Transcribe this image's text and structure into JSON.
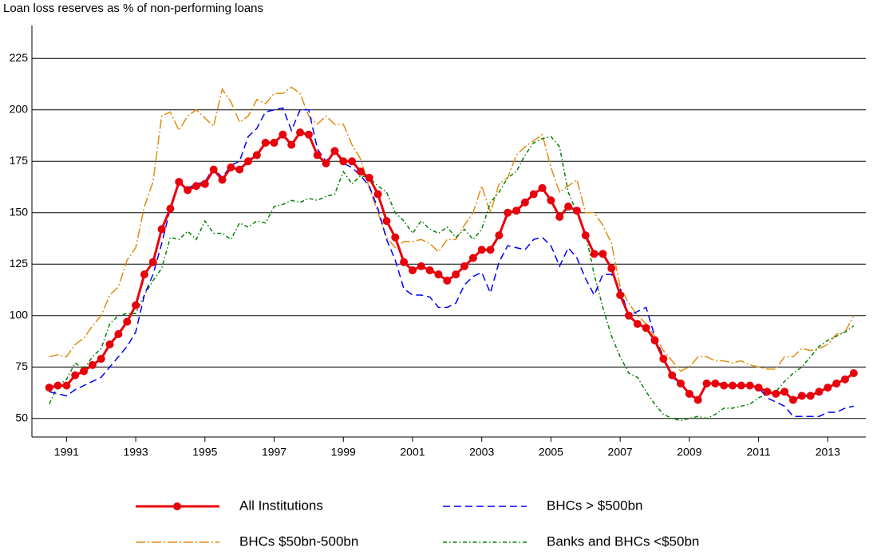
{
  "chart_data": {
    "type": "line",
    "title": "Loan loss reserves as % of non-performing loans",
    "x": [
      1990.5,
      1990.75,
      1991,
      1991.25,
      1991.5,
      1991.75,
      1992,
      1992.25,
      1992.5,
      1992.75,
      1993,
      1993.25,
      1993.5,
      1993.75,
      1994,
      1994.25,
      1994.5,
      1994.75,
      1995,
      1995.25,
      1995.5,
      1995.75,
      1996,
      1996.25,
      1996.5,
      1996.75,
      1997,
      1997.25,
      1997.5,
      1997.75,
      1998,
      1998.25,
      1998.5,
      1998.75,
      1999,
      1999.25,
      1999.5,
      1999.75,
      2000,
      2000.25,
      2000.5,
      2000.75,
      2001,
      2001.25,
      2001.5,
      2001.75,
      2002,
      2002.25,
      2002.5,
      2002.75,
      2003,
      2003.25,
      2003.5,
      2003.75,
      2004,
      2004.25,
      2004.5,
      2004.75,
      2005,
      2005.25,
      2005.5,
      2005.75,
      2006,
      2006.25,
      2006.5,
      2006.75,
      2007,
      2007.25,
      2007.5,
      2007.75,
      2008,
      2008.25,
      2008.5,
      2008.75,
      2009,
      2009.25,
      2009.5,
      2009.75,
      2010,
      2010.25,
      2010.5,
      2010.75,
      2011,
      2011.25,
      2011.5,
      2011.75,
      2012,
      2012.25,
      2012.5,
      2012.75,
      2013,
      2013.25,
      2013.5,
      2013.75
    ],
    "series": [
      {
        "name": "All Institutions",
        "color": "#e8000b",
        "dash": "none",
        "width": 3,
        "marker": true,
        "values": [
          65,
          66,
          66,
          71,
          73,
          76,
          79,
          86,
          91,
          97,
          105,
          120,
          126,
          142,
          152,
          165,
          161,
          163,
          164,
          171,
          166,
          172,
          171,
          175,
          178,
          184,
          184,
          188,
          183,
          189,
          188,
          178,
          174,
          180,
          175,
          175,
          170,
          167,
          159,
          146,
          138,
          126,
          122,
          124,
          122,
          120,
          117,
          120,
          124,
          128,
          132,
          132,
          139,
          150,
          151,
          155,
          159,
          162,
          156,
          148,
          153,
          151,
          139,
          130,
          130,
          123,
          110,
          100,
          96,
          94,
          88,
          79,
          71,
          67,
          62,
          59,
          67,
          67,
          66,
          66,
          66,
          66,
          65,
          63,
          62,
          63,
          59,
          61,
          61,
          63,
          65,
          67,
          69,
          72
        ]
      },
      {
        "name": "BHCs > $500bn",
        "color": "#0000ff",
        "dash": "9,5",
        "width": 1.5,
        "marker": false,
        "values": [
          63,
          62,
          61,
          64,
          66,
          68,
          70,
          75,
          80,
          85,
          92,
          110,
          120,
          135,
          152,
          165,
          162,
          164,
          165,
          172,
          167,
          173,
          175,
          187,
          191,
          199,
          200,
          201,
          190,
          200,
          200,
          181,
          175,
          180,
          174,
          172,
          168,
          163,
          152,
          137,
          127,
          113,
          110,
          110,
          109,
          104,
          104,
          106,
          115,
          119,
          121,
          111,
          126,
          134,
          133,
          132,
          137,
          138,
          134,
          124,
          133,
          128,
          118,
          110,
          120,
          120,
          113,
          100,
          102,
          104,
          90,
          80,
          70,
          67,
          62,
          58,
          67,
          67,
          67,
          66,
          66,
          66,
          65,
          60,
          58,
          56,
          51,
          51,
          51,
          51,
          53,
          53,
          55,
          56
        ]
      },
      {
        "name": "BHCs $50bn-500bn",
        "color": "#e08c10",
        "dash": "12,3,2,3",
        "width": 1.5,
        "marker": false,
        "values": [
          80,
          81,
          80,
          86,
          89,
          95,
          100,
          110,
          114,
          127,
          133,
          153,
          165,
          197,
          199,
          190,
          197,
          200,
          196,
          192,
          210,
          204,
          194,
          197,
          205,
          203,
          208,
          208,
          211,
          208,
          197,
          193,
          197,
          193,
          193,
          183,
          176,
          162,
          150,
          138,
          133,
          136,
          136,
          137,
          135,
          131,
          137,
          137,
          144,
          150,
          163,
          150,
          164,
          167,
          178,
          182,
          185,
          188,
          172,
          160,
          163,
          166,
          150,
          150,
          144,
          135,
          114,
          106,
          100,
          96,
          90,
          83,
          78,
          73,
          75,
          80,
          80,
          78,
          78,
          77,
          78,
          76,
          75,
          74,
          74,
          80,
          80,
          84,
          83,
          84,
          86,
          91,
          92,
          100
        ]
      },
      {
        "name": "Banks and BHCs <$50bn",
        "color": "#008000",
        "dash": "5,3,1.5,3",
        "width": 1.5,
        "marker": false,
        "values": [
          57,
          66,
          69,
          77,
          74,
          80,
          84,
          96,
          100,
          101,
          101,
          110,
          117,
          123,
          138,
          137,
          141,
          137,
          146,
          140,
          140,
          137,
          145,
          143,
          146,
          145,
          153,
          154,
          156,
          155,
          157,
          156,
          158,
          159,
          170,
          164,
          168,
          167,
          163,
          160,
          150,
          146,
          140,
          146,
          142,
          140,
          143,
          138,
          142,
          137,
          142,
          155,
          160,
          167,
          170,
          178,
          184,
          186,
          187,
          182,
          160,
          150,
          140,
          120,
          104,
          90,
          80,
          72,
          70,
          63,
          57,
          52,
          50,
          49,
          50,
          51,
          50,
          52,
          55,
          55,
          56,
          57,
          60,
          62,
          63,
          68,
          72,
          75,
          80,
          85,
          88,
          90,
          92,
          95
        ]
      }
    ],
    "xlim": [
      1990,
      2014.1
    ],
    "xticks": [
      1991,
      1993,
      1995,
      1997,
      1999,
      2001,
      2003,
      2005,
      2007,
      2009,
      2011,
      2013
    ],
    "ylim": [
      41,
      241
    ],
    "yticks": [
      50,
      75,
      100,
      125,
      150,
      175,
      200,
      225
    ],
    "grid": true
  }
}
